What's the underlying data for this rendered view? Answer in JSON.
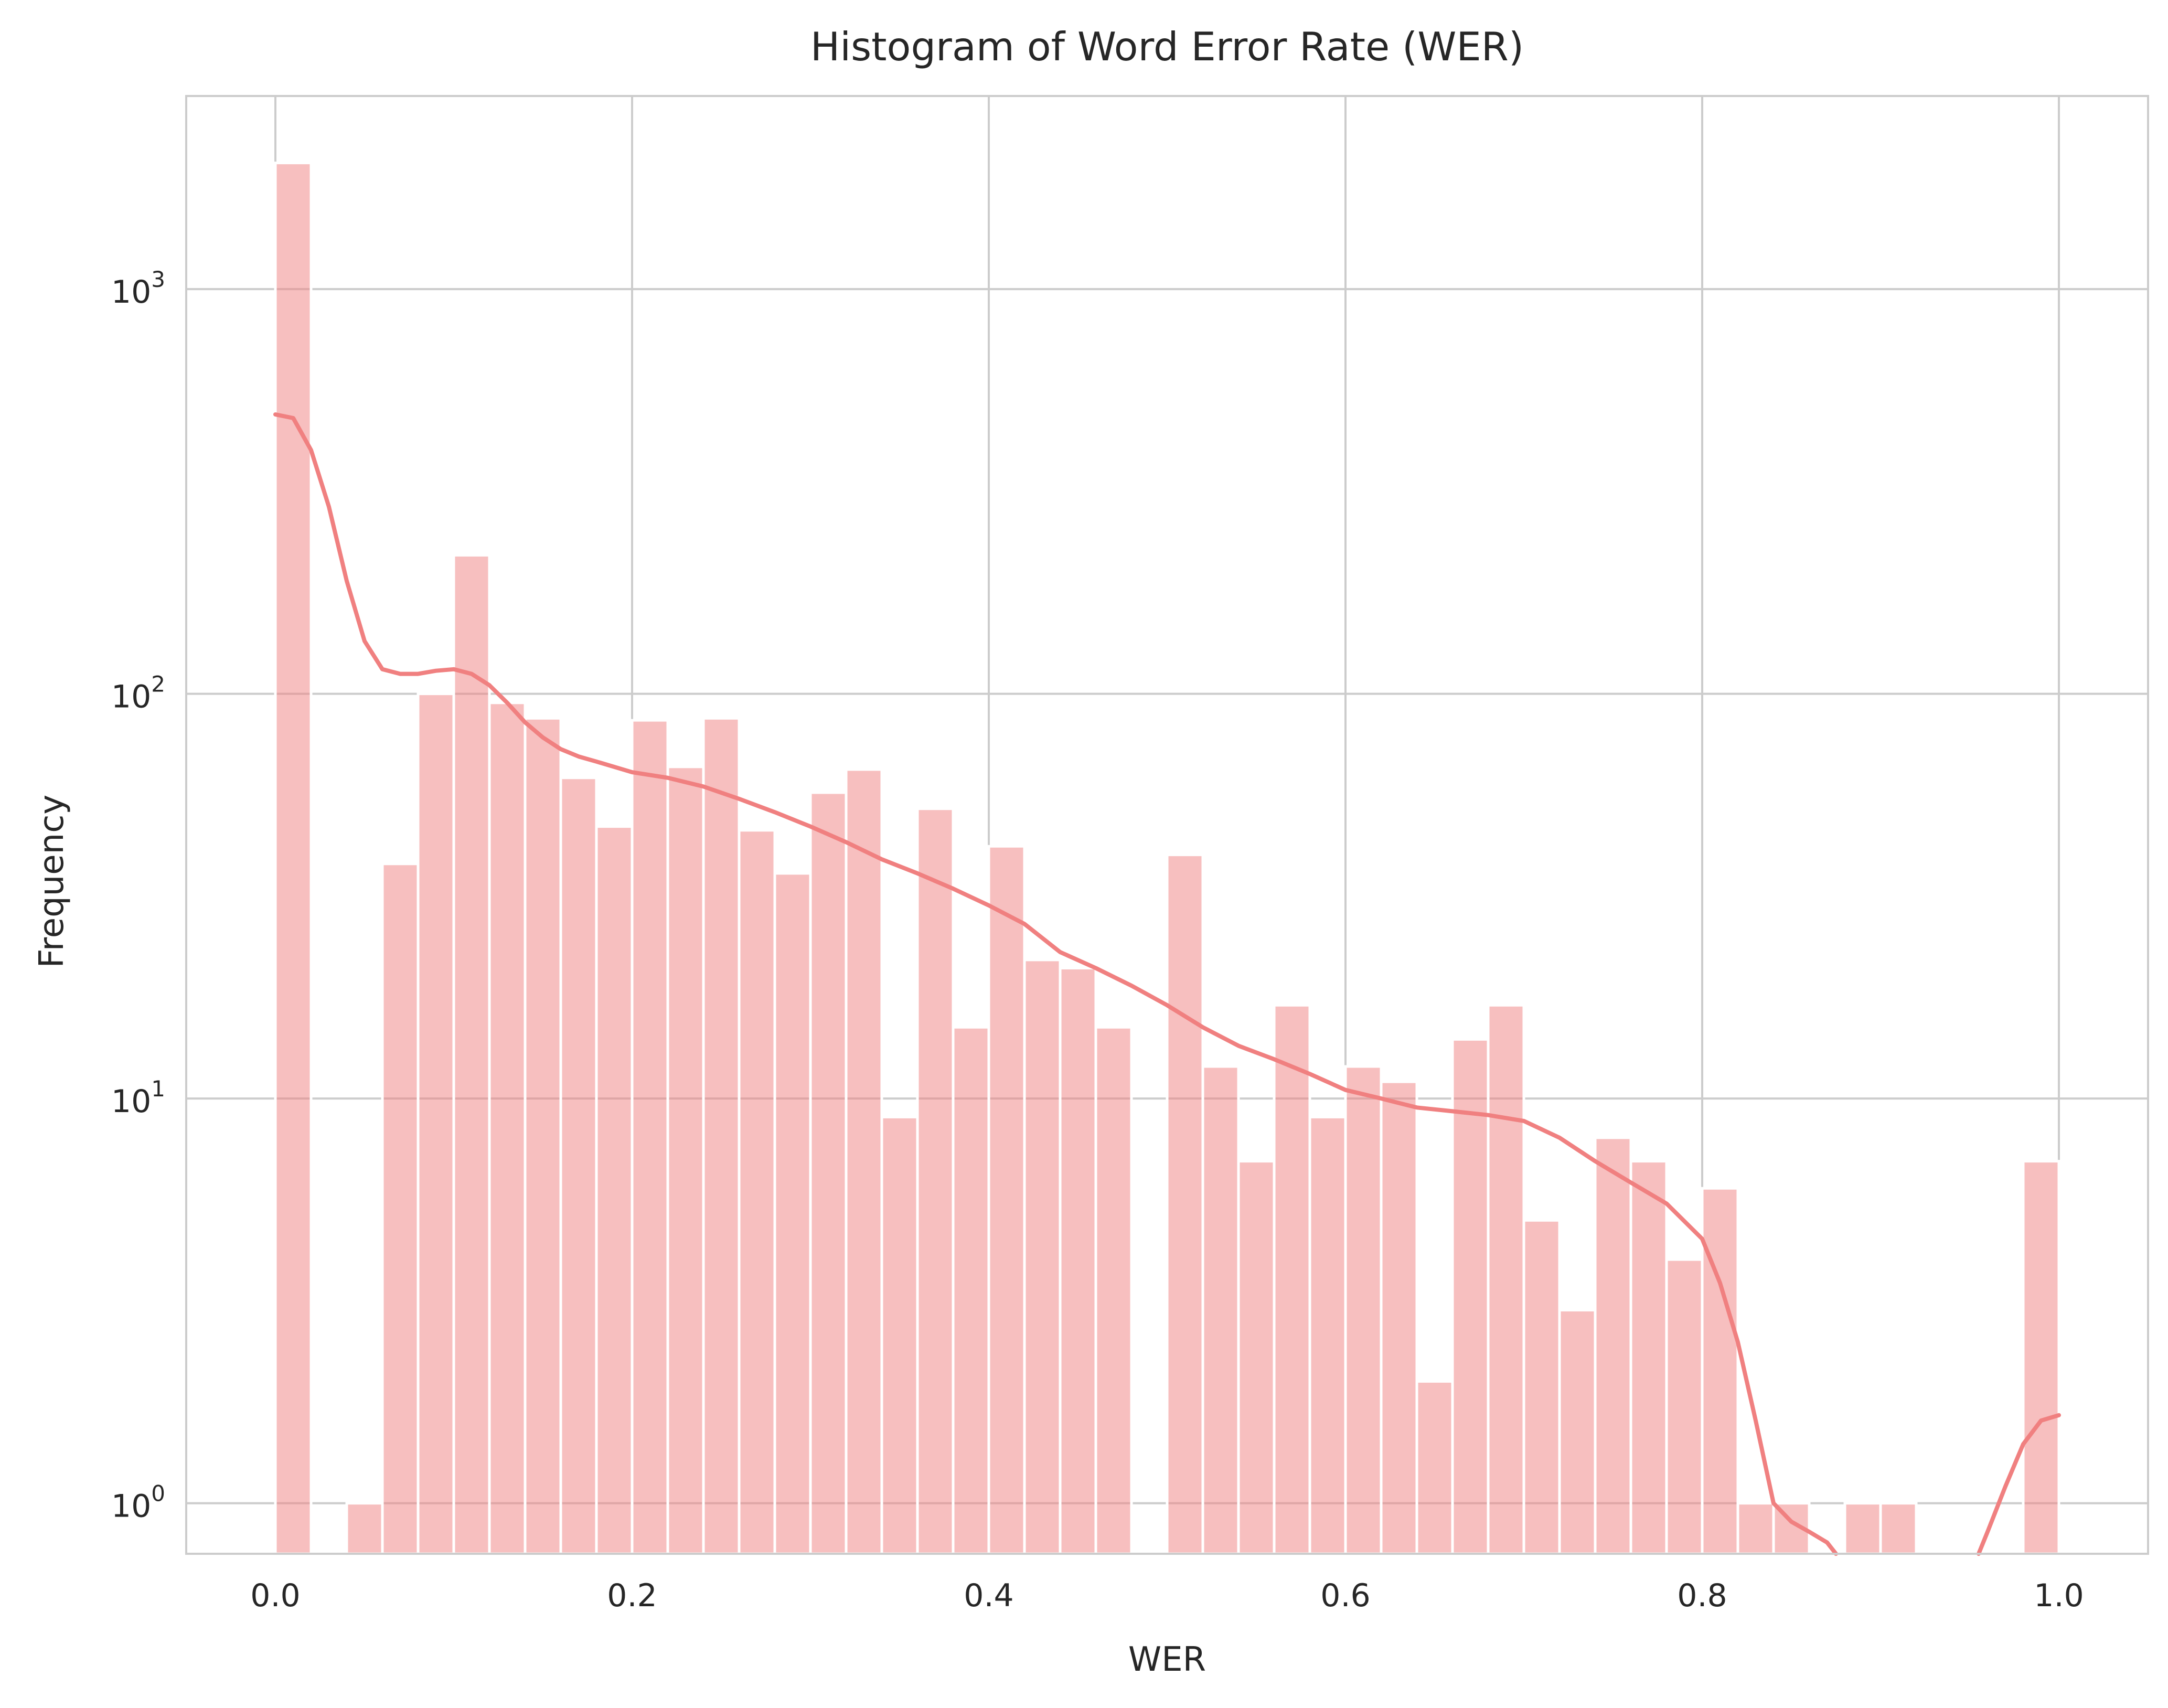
{
  "chart_data": {
    "type": "bar",
    "title": "Histogram of Word Error Rate (WER)",
    "xlabel": "WER",
    "ylabel": "Frequency",
    "xlim": [
      -0.05,
      1.05
    ],
    "ylim": [
      0.75,
      3000
    ],
    "yscale": "log",
    "grid": true,
    "x_ticks": [
      {
        "value": 0.0,
        "label": "0.0"
      },
      {
        "value": 0.2,
        "label": "0.2"
      },
      {
        "value": 0.4,
        "label": "0.4"
      },
      {
        "value": 0.6,
        "label": "0.6"
      },
      {
        "value": 0.8,
        "label": "0.8"
      },
      {
        "value": 1.0,
        "label": "1.0"
      }
    ],
    "y_ticks": [
      {
        "value": 1,
        "base": "10",
        "exp": "0"
      },
      {
        "value": 10,
        "base": "10",
        "exp": "1"
      },
      {
        "value": 100,
        "base": "10",
        "exp": "2"
      },
      {
        "value": 1000,
        "base": "10",
        "exp": "3"
      }
    ],
    "bin_width": 0.02,
    "bin_starts": [
      0.0,
      0.02,
      0.04,
      0.06,
      0.08,
      0.1,
      0.12,
      0.14,
      0.16,
      0.18,
      0.2,
      0.22,
      0.24,
      0.26,
      0.28,
      0.3,
      0.32,
      0.34,
      0.36,
      0.38,
      0.4,
      0.42,
      0.44,
      0.46,
      0.48,
      0.5,
      0.52,
      0.54,
      0.56,
      0.58,
      0.6,
      0.62,
      0.64,
      0.66,
      0.68,
      0.7,
      0.72,
      0.74,
      0.76,
      0.78,
      0.8,
      0.82,
      0.84,
      0.86,
      0.88,
      0.9,
      0.92,
      0.94,
      0.96,
      0.98
    ],
    "values": [
      2050,
      0,
      1,
      38,
      100,
      220,
      95,
      87,
      62,
      47,
      86,
      66,
      87,
      46,
      36,
      57,
      65,
      9,
      52,
      15,
      42,
      22,
      21,
      15,
      0,
      40,
      12,
      7,
      17,
      9,
      12,
      11,
      2,
      14,
      17,
      5,
      3,
      8,
      7,
      4,
      6,
      1,
      1,
      0,
      1,
      1,
      0,
      0,
      0,
      7
    ],
    "bar_color": "#f08080",
    "bar_opacity": 0.5,
    "kde": {
      "color": "#f08080",
      "x": [
        0.0,
        0.01,
        0.02,
        0.03,
        0.04,
        0.05,
        0.06,
        0.07,
        0.08,
        0.09,
        0.1,
        0.11,
        0.12,
        0.13,
        0.14,
        0.15,
        0.16,
        0.17,
        0.18,
        0.2,
        0.22,
        0.24,
        0.26,
        0.28,
        0.3,
        0.32,
        0.34,
        0.36,
        0.38,
        0.4,
        0.42,
        0.44,
        0.46,
        0.48,
        0.5,
        0.52,
        0.54,
        0.56,
        0.58,
        0.6,
        0.62,
        0.64,
        0.66,
        0.68,
        0.7,
        0.72,
        0.74,
        0.76,
        0.78,
        0.8,
        0.81,
        0.82,
        0.83,
        0.84,
        0.85,
        0.86,
        0.87,
        0.875,
        0.955,
        0.96,
        0.97,
        0.98,
        0.99,
        1.0
      ],
      "y": [
        490,
        480,
        400,
        290,
        190,
        135,
        115,
        112,
        112,
        114,
        115,
        112,
        105,
        95,
        85,
        78,
        73,
        70,
        68,
        64,
        62,
        59,
        55,
        51,
        47,
        43,
        39,
        36,
        33,
        30,
        27,
        23,
        21,
        19,
        17,
        15,
        13.5,
        12.5,
        11.5,
        10.5,
        10,
        9.5,
        9.3,
        9.1,
        8.8,
        8,
        7,
        6.2,
        5.5,
        4.5,
        3.5,
        2.5,
        1.6,
        1.0,
        0.9,
        0.85,
        0.8,
        0.75,
        0.75,
        0.85,
        1.1,
        1.4,
        1.6,
        1.65
      ]
    }
  }
}
